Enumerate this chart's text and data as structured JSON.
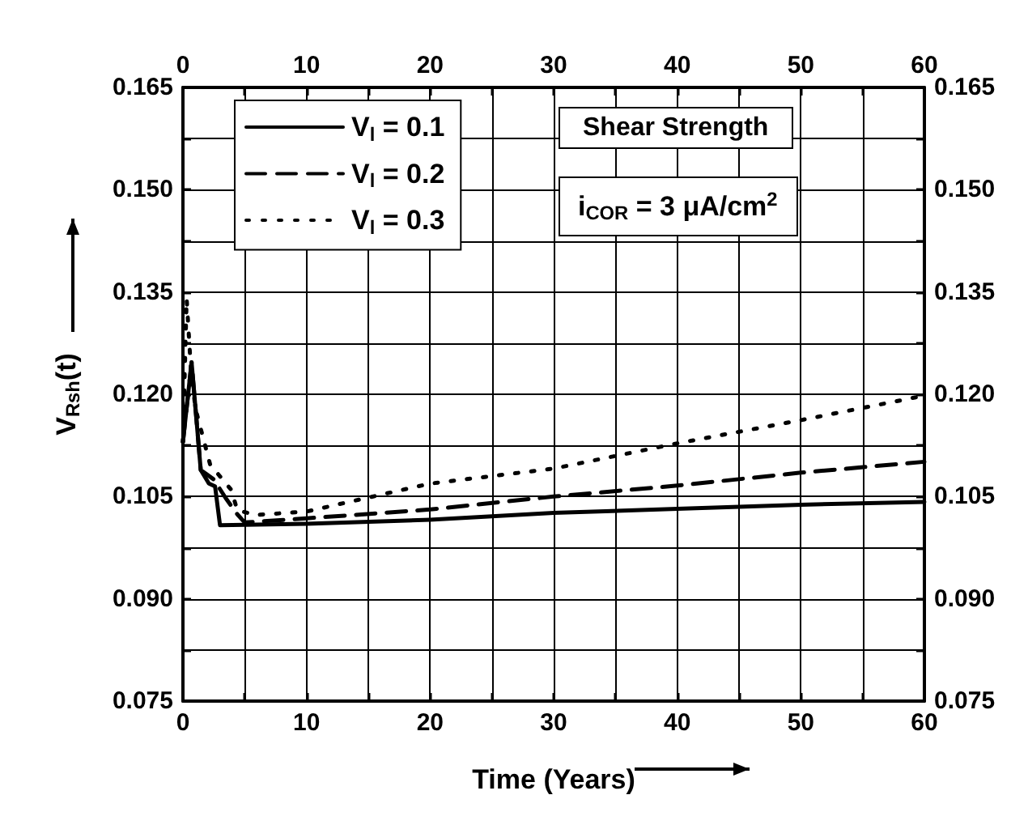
{
  "chart_data": {
    "type": "line",
    "xlabel": "Time (Years)",
    "ylabel": "V$_{Rsh}$(t)",
    "annotations": [
      "Shear Strength",
      "i$_{COR}$ = 3 μA/cm$^{2}$"
    ],
    "xlim": [
      0,
      60
    ],
    "xticks": [
      0,
      {
        "value": 5,
        "label": null
      },
      10,
      {
        "value": 15,
        "label": null
      },
      20,
      {
        "value": 25,
        "label": null
      },
      30,
      {
        "value": 35,
        "label": null
      },
      40,
      {
        "value": 45,
        "label": null
      },
      50,
      {
        "value": 55,
        "label": null
      },
      60
    ],
    "x2lim": [
      0,
      60
    ],
    "x2ticks": [
      0,
      {
        "value": 5,
        "label": null
      },
      10,
      {
        "value": 15,
        "label": null
      },
      20,
      {
        "value": 25,
        "label": null
      },
      30,
      {
        "value": 35,
        "label": null
      },
      40,
      {
        "value": 45,
        "label": null
      },
      50,
      {
        "value": 55,
        "label": null
      },
      60
    ],
    "ylim": [
      0.075,
      0.165
    ],
    "yticks": [
      0.075,
      {
        "value": 0.0825,
        "label": null
      },
      {
        "value": 0.09,
        "label": "0.090"
      },
      {
        "value": 0.0975,
        "label": null
      },
      0.105,
      {
        "value": 0.1125,
        "label": null
      },
      {
        "value": 0.12,
        "label": "0.120"
      },
      {
        "value": 0.1275,
        "label": null
      },
      0.135,
      {
        "value": 0.1425,
        "label": null
      },
      {
        "value": 0.15,
        "label": "0.150"
      },
      {
        "value": 0.1575,
        "label": null
      },
      0.165
    ],
    "y2lim": [
      0.075,
      0.165
    ],
    "y2ticks": [
      0.075,
      {
        "value": 0.0825,
        "label": null
      },
      {
        "value": 0.09,
        "label": "0.090"
      },
      {
        "value": 0.0975,
        "label": null
      },
      0.105,
      {
        "value": 0.1125,
        "label": null
      },
      {
        "value": 0.12,
        "label": "0.120"
      },
      {
        "value": 0.1275,
        "label": null
      },
      0.135,
      {
        "value": 0.1425,
        "label": null
      },
      {
        "value": 0.15,
        "label": "0.150"
      },
      {
        "value": 0.1575,
        "label": null
      },
      0.165
    ],
    "grid": true,
    "legend": "top left",
    "marker": "none",
    "series": [
      {
        "name": "V$_{l}$ = 0.1",
        "color": "#000000",
        "line_style": "solid",
        "x": [
          0,
          0.7,
          1.44,
          2.1,
          2.6,
          3.0,
          10,
          20,
          30,
          40,
          50,
          60
        ],
        "values": [
          0.113,
          0.1247,
          0.1089,
          0.1069,
          0.1065,
          0.1008,
          0.101,
          0.1016,
          0.1026,
          0.1032,
          0.1038,
          0.1042
        ]
      },
      {
        "name": "V$_{l}$ = 0.2",
        "color": "#000000",
        "line_style": "dashed",
        "x": [
          0,
          0.7,
          1.44,
          2.5,
          3.45,
          4.4,
          5,
          10,
          20,
          30,
          40,
          50,
          60
        ],
        "values": [
          0.113,
          0.1247,
          0.1089,
          0.1075,
          0.1048,
          0.1024,
          0.1012,
          0.1018,
          0.1031,
          0.105,
          0.1066,
          0.1085,
          0.1101
        ]
      },
      {
        "name": "V$_{l}$ = 0.3",
        "color": "#000000",
        "line_style": "dotted",
        "x": [
          0,
          0.3,
          0.6,
          1,
          2.2,
          3.9,
          4.4,
          5.9,
          10,
          20,
          30,
          40,
          50,
          60
        ],
        "values": [
          0.113,
          0.134,
          0.125,
          0.118,
          0.1097,
          0.106,
          0.103,
          0.1023,
          0.1028,
          0.1069,
          0.1091,
          0.1128,
          0.1162,
          0.1198
        ]
      }
    ]
  }
}
